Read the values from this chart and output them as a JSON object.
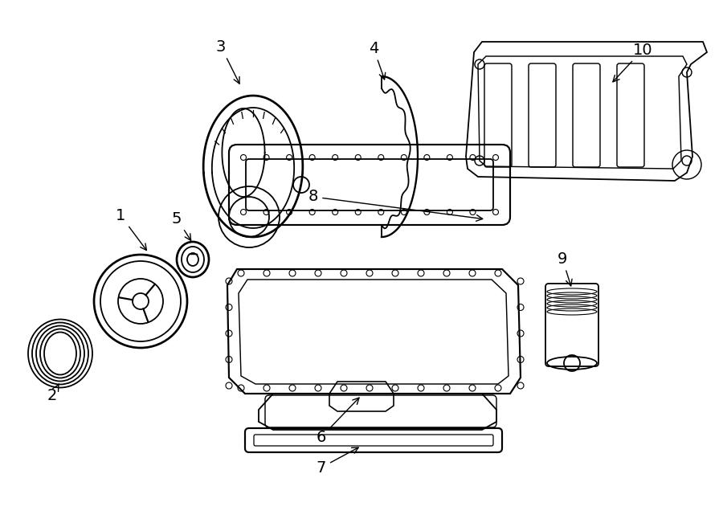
{
  "background_color": "#ffffff",
  "line_color": "#000000",
  "figsize": [
    9.0,
    6.61
  ],
  "dpi": 100
}
